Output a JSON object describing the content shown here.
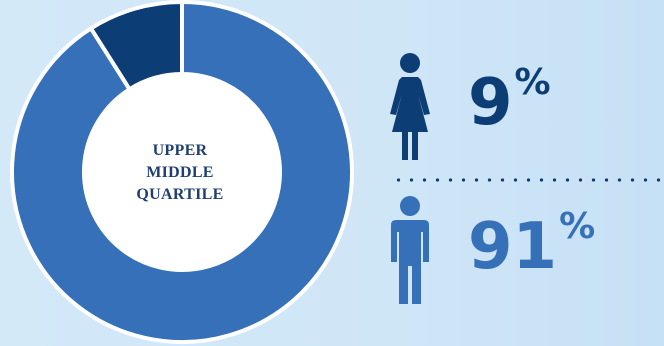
{
  "chart_data": {
    "type": "pie",
    "style": "donut",
    "title": "",
    "center_label": [
      "UPPER",
      "MIDDLE",
      "QUARTILE"
    ],
    "slices": [
      {
        "name": "Female",
        "value": 9,
        "color": "#0d3d75",
        "icon": "female-person-icon"
      },
      {
        "name": "Male",
        "value": 91,
        "color": "#3570b8",
        "icon": "male-person-icon"
      }
    ],
    "legend": [
      {
        "value_text": "9",
        "unit": "%",
        "color": "#0d3d75",
        "icon": "female-person-icon"
      },
      {
        "value_text": "91",
        "unit": "%",
        "color": "#3570b8",
        "icon": "male-person-icon"
      }
    ]
  }
}
